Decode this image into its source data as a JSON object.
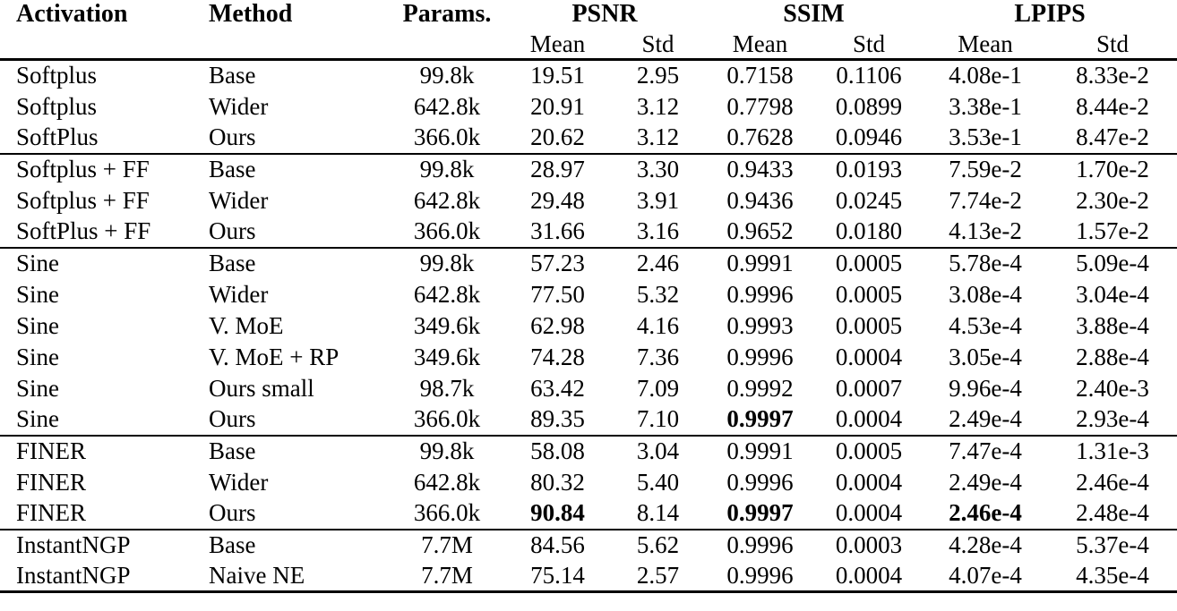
{
  "colors": {
    "text": "#000000",
    "background": "#ffffff",
    "rule": "#000000"
  },
  "header": {
    "static_columns": [
      "Activation",
      "Method",
      "Params."
    ],
    "metric_groups": [
      {
        "label": "PSNR",
        "subcolumns": [
          "Mean",
          "Std"
        ]
      },
      {
        "label": "SSIM",
        "subcolumns": [
          "Mean",
          "Std"
        ]
      },
      {
        "label": "LPIPS",
        "subcolumns": [
          "Mean",
          "Std"
        ]
      }
    ]
  },
  "groups": [
    {
      "rows": [
        {
          "cells": [
            "Softplus",
            "Base",
            "99.8k",
            "19.51",
            "2.95",
            "0.7158",
            "0.1106",
            "4.08e-1",
            "8.33e-2"
          ],
          "bold": []
        },
        {
          "cells": [
            "Softplus",
            "Wider",
            "642.8k",
            "20.91",
            "3.12",
            "0.7798",
            "0.0899",
            "3.38e-1",
            "8.44e-2"
          ],
          "bold": []
        },
        {
          "cells": [
            "SoftPlus",
            "Ours",
            "366.0k",
            "20.62",
            "3.12",
            "0.7628",
            "0.0946",
            "3.53e-1",
            "8.47e-2"
          ],
          "bold": []
        }
      ]
    },
    {
      "rows": [
        {
          "cells": [
            "Softplus + FF",
            "Base",
            "99.8k",
            "28.97",
            "3.30",
            "0.9433",
            "0.0193",
            "7.59e-2",
            "1.70e-2"
          ],
          "bold": []
        },
        {
          "cells": [
            "Softplus + FF",
            "Wider",
            "642.8k",
            "29.48",
            "3.91",
            "0.9436",
            "0.0245",
            "7.74e-2",
            "2.30e-2"
          ],
          "bold": []
        },
        {
          "cells": [
            "SoftPlus + FF",
            "Ours",
            "366.0k",
            "31.66",
            "3.16",
            "0.9652",
            "0.0180",
            "4.13e-2",
            "1.57e-2"
          ],
          "bold": []
        }
      ]
    },
    {
      "rows": [
        {
          "cells": [
            "Sine",
            "Base",
            "99.8k",
            "57.23",
            "2.46",
            "0.9991",
            "0.0005",
            "5.78e-4",
            "5.09e-4"
          ],
          "bold": []
        },
        {
          "cells": [
            "Sine",
            "Wider",
            "642.8k",
            "77.50",
            "5.32",
            "0.9996",
            "0.0005",
            "3.08e-4",
            "3.04e-4"
          ],
          "bold": []
        },
        {
          "cells": [
            "Sine",
            "V. MoE",
            "349.6k",
            "62.98",
            "4.16",
            "0.9993",
            "0.0005",
            "4.53e-4",
            "3.88e-4"
          ],
          "bold": []
        },
        {
          "cells": [
            "Sine",
            "V. MoE + RP",
            "349.6k",
            "74.28",
            "7.36",
            "0.9996",
            "0.0004",
            "3.05e-4",
            "2.88e-4"
          ],
          "bold": []
        },
        {
          "cells": [
            "Sine",
            "Ours small",
            "98.7k",
            "63.42",
            "7.09",
            "0.9992",
            "0.0007",
            "9.96e-4",
            "2.40e-3"
          ],
          "bold": []
        },
        {
          "cells": [
            "Sine",
            "Ours",
            "366.0k",
            "89.35",
            "7.10",
            "0.9997",
            "0.0004",
            "2.49e-4",
            "2.93e-4"
          ],
          "bold": [
            5
          ]
        }
      ]
    },
    {
      "rows": [
        {
          "cells": [
            "FINER",
            "Base",
            "99.8k",
            "58.08",
            "3.04",
            "0.9991",
            "0.0005",
            "7.47e-4",
            "1.31e-3"
          ],
          "bold": []
        },
        {
          "cells": [
            "FINER",
            "Wider",
            "642.8k",
            "80.32",
            "5.40",
            "0.9996",
            "0.0004",
            "2.49e-4",
            "2.46e-4"
          ],
          "bold": []
        },
        {
          "cells": [
            "FINER",
            "Ours",
            "366.0k",
            "90.84",
            "8.14",
            "0.9997",
            "0.0004",
            "2.46e-4",
            "2.48e-4"
          ],
          "bold": [
            3,
            5,
            7
          ]
        }
      ]
    },
    {
      "rows": [
        {
          "cells": [
            "InstantNGP",
            "Base",
            "7.7M",
            "84.56",
            "5.62",
            "0.9996",
            "0.0003",
            "4.28e-4",
            "5.37e-4"
          ],
          "bold": []
        },
        {
          "cells": [
            "InstantNGP",
            "Naive NE",
            "7.7M",
            "75.14",
            "2.57",
            "0.9996",
            "0.0004",
            "4.07e-4",
            "4.35e-4"
          ],
          "bold": []
        }
      ]
    }
  ]
}
